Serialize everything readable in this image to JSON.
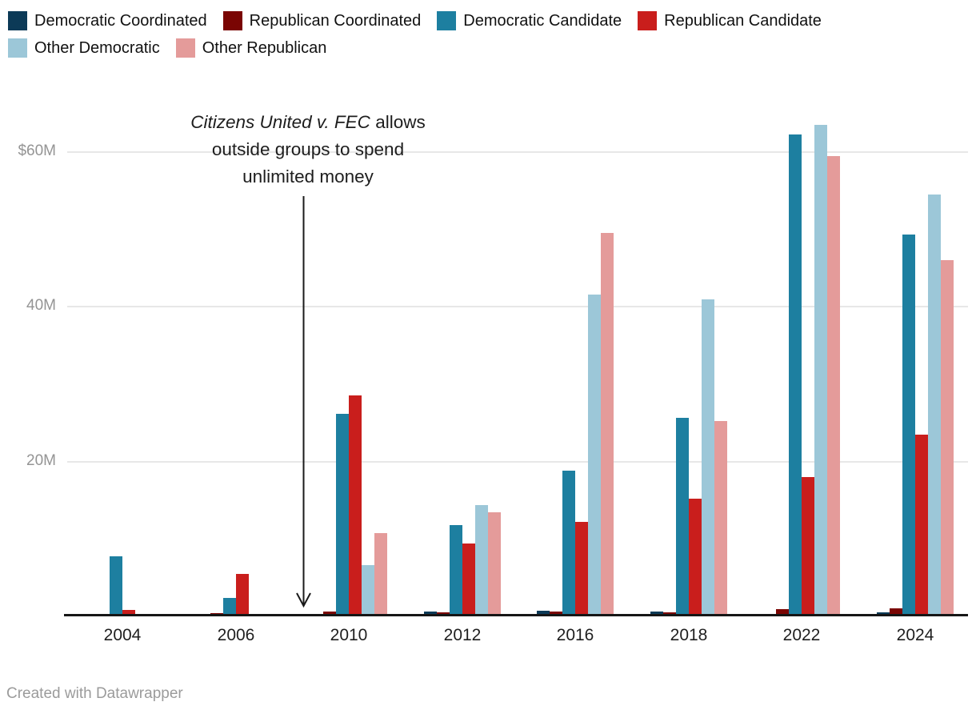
{
  "chart_data": {
    "type": "bar",
    "title": "",
    "xlabel": "",
    "ylabel": "",
    "categories": [
      "2004",
      "2006",
      "2010",
      "2012",
      "2016",
      "2018",
      "2022",
      "2024"
    ],
    "series": [
      {
        "name": "Democratic Coordinated",
        "color": "#0c3a57",
        "values": [
          0,
          0,
          0,
          0.4,
          0.5,
          0.4,
          0,
          0.3
        ]
      },
      {
        "name": "Republican Coordinated",
        "color": "#7a0503",
        "values": [
          0,
          0.2,
          0.4,
          0.3,
          0.4,
          0.3,
          0.7,
          0.8
        ]
      },
      {
        "name": "Democratic Candidate",
        "color": "#1d7fa0",
        "values": [
          7.5,
          2.2,
          25.9,
          11.6,
          18.6,
          25.4,
          62,
          49.1
        ]
      },
      {
        "name": "Republican Candidate",
        "color": "#c91e1c",
        "values": [
          0.6,
          5.3,
          28.3,
          9.2,
          12,
          15,
          17.8,
          23.2
        ]
      },
      {
        "name": "Other Democratic",
        "color": "#9cc7d8",
        "values": [
          0,
          0,
          6.4,
          14.1,
          41.3,
          40.7,
          63.2,
          54.2
        ]
      },
      {
        "name": "Other Republican",
        "color": "#e49b9a",
        "values": [
          0,
          0,
          10.5,
          13.2,
          49.3,
          25,
          59.2,
          45.8
        ]
      }
    ],
    "ylim": [
      0,
      68
    ],
    "yticks": [
      {
        "label": "$60M",
        "value": 60
      },
      {
        "label": "40M",
        "value": 40
      },
      {
        "label": "20M",
        "value": 20
      }
    ],
    "grid": "horizontal",
    "legend_position": "top",
    "annotation": "Citizens United v. FEC allows outside groups to spend unlimited money"
  },
  "annotation": {
    "italic": "Citizens United v. FEC",
    "rest": " allows",
    "line2": "outside groups to spend",
    "line3": "unlimited money"
  },
  "footer": {
    "text": "Created with Datawrapper"
  }
}
